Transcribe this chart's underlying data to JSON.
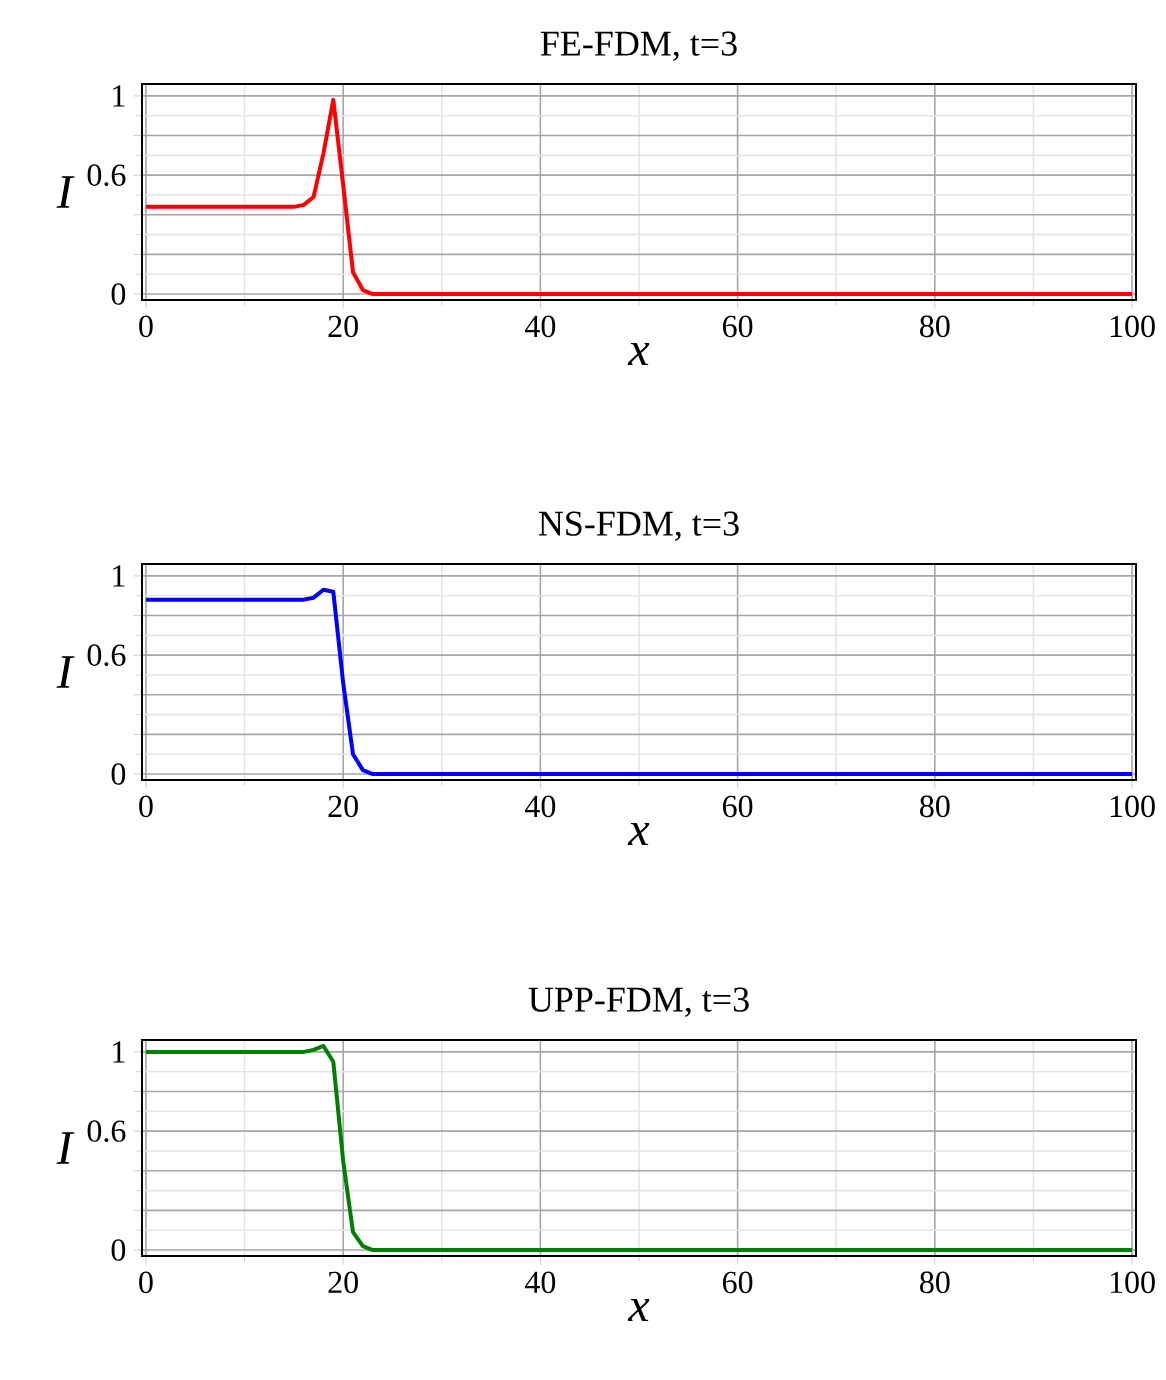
{
  "chart_data": [
    {
      "type": "line",
      "title": "FE-FDM, t=3",
      "xlabel": "x",
      "ylabel": "I",
      "x": [
        0,
        15,
        16,
        17,
        18,
        19,
        20,
        21,
        22,
        23,
        24,
        100
      ],
      "series": [
        {
          "color": "#ff0000",
          "values": [
            0.44,
            0.44,
            0.45,
            0.49,
            0.71,
            0.98,
            0.55,
            0.11,
            0.02,
            0,
            0,
            0
          ]
        }
      ],
      "xlim": [
        -0.4,
        100.4
      ],
      "ylim": [
        -0.03,
        1.06
      ],
      "xticks": [
        0,
        20,
        40,
        60,
        80,
        100
      ],
      "yticks": [
        0,
        {
          "value": 0.2,
          "label": null
        },
        {
          "value": 0.4,
          "label": null
        },
        0.6,
        {
          "value": 0.8,
          "label": null
        },
        1
      ],
      "grid": true,
      "line_style": "solid"
    },
    {
      "type": "line",
      "title": "NS-FDM, t=3",
      "xlabel": "x",
      "ylabel": "I",
      "x": [
        0,
        16,
        17,
        18,
        19,
        20,
        21,
        22,
        23,
        24,
        100
      ],
      "series": [
        {
          "color": "#0000ff",
          "values": [
            0.88,
            0.88,
            0.89,
            0.93,
            0.92,
            0.46,
            0.1,
            0.02,
            0,
            0,
            0
          ]
        }
      ],
      "xlim": [
        -0.4,
        100.4
      ],
      "ylim": [
        -0.03,
        1.06
      ],
      "xticks": [
        0,
        20,
        40,
        60,
        80,
        100
      ],
      "yticks": [
        0,
        {
          "value": 0.2,
          "label": null
        },
        {
          "value": 0.4,
          "label": null
        },
        0.6,
        {
          "value": 0.8,
          "label": null
        },
        1
      ],
      "grid": true,
      "line_style": "solid"
    },
    {
      "type": "line",
      "title": "UPP-FDM, t=3",
      "xlabel": "x",
      "ylabel": "I",
      "x": [
        0,
        16,
        17,
        18,
        19,
        20,
        21,
        22,
        23,
        24,
        100
      ],
      "series": [
        {
          "color": "#008000",
          "values": [
            1.0,
            1.0,
            1.01,
            1.03,
            0.95,
            0.45,
            0.09,
            0.02,
            0,
            0,
            0
          ]
        }
      ],
      "xlim": [
        -0.4,
        100.4
      ],
      "ylim": [
        -0.03,
        1.06
      ],
      "xticks": [
        0,
        20,
        40,
        60,
        80,
        100
      ],
      "yticks": [
        0,
        {
          "value": 0.2,
          "label": null
        },
        {
          "value": 0.4,
          "label": null
        },
        0.6,
        {
          "value": 0.8,
          "label": null
        },
        1
      ],
      "grid": true,
      "line_style": "solid"
    }
  ]
}
